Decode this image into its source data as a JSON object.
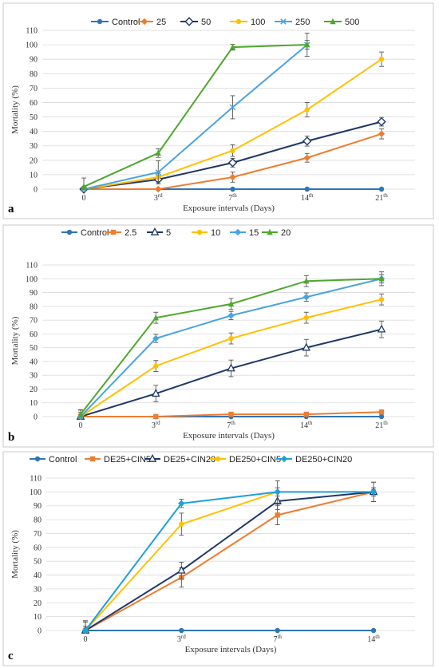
{
  "chart_data": [
    {
      "type": "line",
      "panel_label": "a",
      "x_labels": [
        "0",
        "3rd",
        "7th",
        "14th",
        "21th"
      ],
      "xlabel": "Exposure intervals (Days)",
      "ylabel": "Mortality (%)",
      "ylim": [
        0,
        110
      ],
      "yticks": [
        0,
        10,
        20,
        30,
        40,
        50,
        60,
        70,
        80,
        90,
        100,
        110
      ],
      "legend_position": "top",
      "series": [
        {
          "name": "Control",
          "color": "#2E75B6",
          "marker": "circle",
          "values": [
            0,
            0,
            0,
            0,
            0
          ],
          "errors": [
            0,
            0,
            0,
            0,
            0
          ]
        },
        {
          "name": "25",
          "color": "#ED7D31",
          "marker": "diamond",
          "values": [
            0,
            0,
            8.3,
            21.7,
            38.3
          ],
          "errors": [
            0,
            0,
            3.5,
            3,
            3.5
          ]
        },
        {
          "name": "50",
          "color": "#1F3864",
          "marker": "diamond-open",
          "values": [
            0,
            6.7,
            18.3,
            33.3,
            46.7
          ],
          "errors": [
            0,
            3,
            3,
            3.5,
            3
          ]
        },
        {
          "name": "100",
          "color": "#FFC000",
          "marker": "circle",
          "values": [
            0,
            8.3,
            26.7,
            55,
            90
          ],
          "errors": [
            0,
            3,
            4,
            5,
            5
          ]
        },
        {
          "name": "250",
          "color": "#4AA3DF",
          "marker": "star",
          "values": [
            0,
            11.7,
            56.7,
            100,
            null
          ],
          "errors": [
            0,
            8,
            8,
            8,
            0
          ]
        },
        {
          "name": "500",
          "color": "#4EA72E",
          "marker": "triangle",
          "values": [
            1.7,
            25,
            98.3,
            100,
            null
          ],
          "errors": [
            6,
            3,
            2,
            3,
            0
          ]
        }
      ]
    },
    {
      "type": "line",
      "panel_label": "b",
      "x_labels": [
        "0",
        "3rd",
        "7th",
        "14th",
        "21th"
      ],
      "xlabel": "Exposure intervals (Days)",
      "ylabel": "Mortality (%)",
      "ylim": [
        0,
        110
      ],
      "yticks": [
        0,
        10,
        20,
        30,
        40,
        50,
        60,
        70,
        80,
        90,
        100,
        110
      ],
      "legend_position": "top",
      "series": [
        {
          "name": "Control",
          "color": "#2E75B6",
          "marker": "circle",
          "values": [
            0,
            0,
            0,
            0,
            0
          ],
          "errors": [
            0,
            0,
            0,
            0,
            0
          ]
        },
        {
          "name": "2.5",
          "color": "#ED7D31",
          "marker": "square",
          "values": [
            0,
            0,
            1.7,
            1.7,
            3.3
          ],
          "errors": [
            0,
            1.5,
            1.5,
            1.5,
            1.5
          ]
        },
        {
          "name": "5",
          "color": "#1F3864",
          "marker": "triangle-open",
          "values": [
            0,
            16.7,
            35,
            50,
            63.3
          ],
          "errors": [
            5,
            6,
            6,
            6,
            6
          ]
        },
        {
          "name": "10",
          "color": "#FFC000",
          "marker": "circle",
          "values": [
            0,
            36.7,
            56.7,
            71.7,
            85
          ],
          "errors": [
            3,
            4,
            4,
            4,
            4
          ]
        },
        {
          "name": "15",
          "color": "#4AA3DF",
          "marker": "diamond",
          "values": [
            0,
            56.7,
            73.3,
            86.7,
            100
          ],
          "errors": [
            3,
            3,
            3,
            3,
            3
          ]
        },
        {
          "name": "20",
          "color": "#4EA72E",
          "marker": "triangle",
          "values": [
            1.7,
            71.7,
            81.7,
            98.3,
            100
          ],
          "errors": [
            3,
            4,
            4,
            4,
            5
          ]
        }
      ]
    },
    {
      "type": "line",
      "panel_label": "c",
      "x_labels": [
        "0",
        "3rd",
        "7th",
        "14th"
      ],
      "xlabel": "Exposure intervals (Days)",
      "ylabel": "Mortality (%)",
      "ylim": [
        0,
        110
      ],
      "yticks": [
        0,
        10,
        20,
        30,
        40,
        50,
        60,
        70,
        80,
        90,
        100,
        110
      ],
      "legend_position": "top",
      "series": [
        {
          "name": "Control",
          "color": "#2E75B6",
          "marker": "circle",
          "values": [
            0,
            0,
            0,
            0
          ],
          "errors": [
            0,
            0,
            0,
            0
          ]
        },
        {
          "name": "DE25+CIN5",
          "color": "#ED7D31",
          "marker": "square",
          "values": [
            0,
            38.3,
            83.3,
            100
          ],
          "errors": [
            7,
            7,
            7,
            7
          ]
        },
        {
          "name": "DE25+CIN20",
          "color": "#1F3864",
          "marker": "triangle-open",
          "values": [
            0,
            43.3,
            93.3,
            100
          ],
          "errors": [
            7,
            6,
            6,
            7
          ]
        },
        {
          "name": "DE250+CIN5",
          "color": "#FFC000",
          "marker": "circle",
          "values": [
            0,
            76.7,
            100,
            null
          ],
          "errors": [
            6,
            8,
            8,
            0
          ]
        },
        {
          "name": "DE250+CIN20",
          "color": "#1FA0D8",
          "marker": "diamond",
          "values": [
            0,
            91.7,
            100,
            100
          ],
          "errors": [
            3,
            3,
            3,
            3
          ]
        }
      ]
    }
  ]
}
